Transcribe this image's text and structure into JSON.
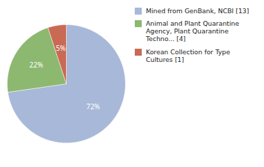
{
  "chart_data": {
    "type": "pie",
    "categories": [
      "Mined from GenBank, NCBI [13]",
      "Animal and Plant Quarantine\nAgency, Plant Quarantine\nTechno... [4]",
      "Korean Collection for Type\nCultures [1]"
    ],
    "values": [
      72,
      22,
      5
    ],
    "value_labels": [
      "72%",
      "22%",
      "5%"
    ],
    "colors": [
      "#a8b8d8",
      "#8db870",
      "#c96a55"
    ],
    "data_labels": true,
    "legend": "right"
  }
}
